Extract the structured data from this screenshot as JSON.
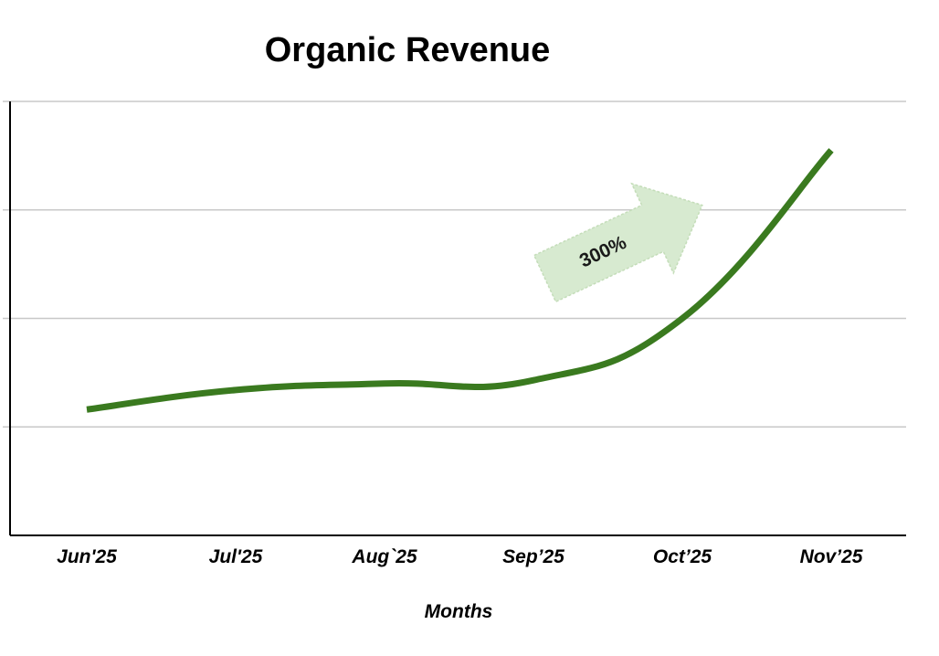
{
  "chart_data": {
    "type": "line",
    "title": "Organic Revenue",
    "xlabel": "Months",
    "ylabel": "",
    "categories": [
      "Jun'25",
      "Jul'25",
      "Aug`25",
      "Sep’25",
      "Oct’25",
      "Nov’25"
    ],
    "series": [
      {
        "values": [
          1.16,
          1.34,
          1.4,
          1.43,
          2.0,
          3.55
        ]
      }
    ],
    "ylim": [
      0,
      4
    ],
    "y_gridlines": [
      1,
      2,
      3,
      4
    ],
    "grid": true,
    "legend": "none",
    "annotations": [
      {
        "text": "300%",
        "kind": "arrow"
      }
    ],
    "colors": {
      "line": "#3a7a1f",
      "grid": "#c8c8c8",
      "axis": "#000000",
      "arrow_fill": "#d7ead0",
      "arrow_stroke": "#c4ddb9"
    }
  }
}
